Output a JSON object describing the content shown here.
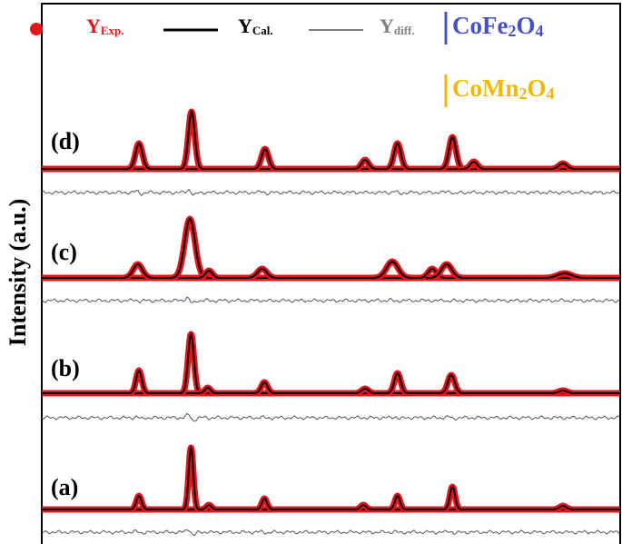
{
  "chart_data": {
    "type": "rietveld",
    "ylabel": "Intensity (a.u.)",
    "xlim": [
      0,
      100
    ],
    "legend": [
      {
        "symbol": "Y",
        "subscript": "Exp.",
        "color": "#e8141c",
        "style": "points"
      },
      {
        "symbol": "Y",
        "subscript": "Cal.",
        "color": "#000000",
        "style": "line"
      },
      {
        "symbol": "Y",
        "subscript": "diff.",
        "color": "#808080",
        "style": "line"
      }
    ],
    "phases": [
      {
        "parts": [
          "CoFe",
          "2",
          "O",
          "4"
        ],
        "color": "#4451c8"
      },
      {
        "parts": [
          "CoMn",
          "2",
          "O",
          "4"
        ],
        "color": "#f2b705"
      }
    ],
    "panels": [
      {
        "label": "(d)",
        "positions": [
          16.8,
          25.9,
          38.6,
          55.9,
          61.5,
          71.0,
          74.7,
          90.1
        ],
        "heights": [
          28,
          63,
          22,
          10,
          28,
          35,
          8,
          6
        ],
        "widths": [
          0.6,
          0.55,
          0.6,
          0.6,
          0.6,
          0.6,
          0.6,
          0.7
        ]
      },
      {
        "label": "(c)",
        "positions": [
          16.6,
          25.6,
          28.9,
          38.1,
          60.6,
          67.5,
          70.0,
          90.4
        ],
        "heights": [
          15,
          65,
          8,
          10,
          18,
          10,
          15,
          5
        ],
        "widths": [
          0.8,
          0.9,
          0.6,
          0.8,
          1.0,
          0.7,
          0.9,
          1.2
        ]
      },
      {
        "label": "(b)",
        "positions": [
          16.8,
          25.8,
          28.7,
          38.5,
          55.9,
          61.5,
          70.8,
          90.1
        ],
        "heights": [
          25,
          65,
          6,
          12,
          5,
          22,
          20,
          3
        ],
        "widths": [
          0.5,
          0.5,
          0.5,
          0.55,
          0.6,
          0.55,
          0.6,
          0.7
        ]
      },
      {
        "label": "(a)",
        "positions": [
          16.8,
          25.8,
          28.9,
          38.5,
          55.6,
          61.5,
          71.0,
          90.1
        ],
        "heights": [
          15,
          68,
          5,
          12,
          5,
          15,
          25,
          4
        ],
        "widths": [
          0.45,
          0.4,
          0.45,
          0.45,
          0.5,
          0.45,
          0.45,
          0.6
        ]
      }
    ]
  }
}
